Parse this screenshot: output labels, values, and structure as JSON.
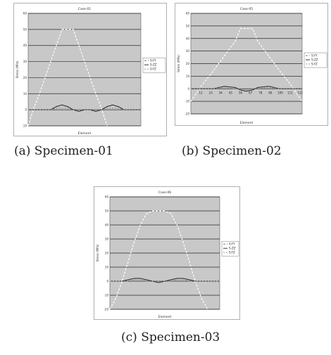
{
  "captions": {
    "a": "(a) Specimen-01",
    "b": "(b) Specimen-02",
    "c": "(c) Specimen-03"
  },
  "colors": {
    "plot_bg": "#c8c8c8",
    "grid": "#2a2a2a",
    "series_yy": "#ffffff",
    "series_zz": "#222222",
    "series_yz": "#888888"
  },
  "chart_data": [
    {
      "type": "line",
      "title": "Case-01",
      "xlabel": "Element",
      "ylabel": "Stress (MPa)",
      "ylim": [
        -10,
        60
      ],
      "yticks": [
        60,
        50,
        40,
        30,
        20,
        10,
        0,
        -10
      ],
      "grid": true,
      "legend": "right",
      "x": [
        0,
        5,
        10,
        15,
        20,
        25,
        30,
        35,
        40,
        45,
        50,
        55,
        60,
        65,
        70,
        75,
        80,
        85,
        90,
        95,
        100
      ],
      "series": [
        {
          "name": "S-YY",
          "values": [
            -10,
            1,
            10,
            20,
            30,
            40,
            50,
            50,
            50,
            40,
            30,
            20,
            10,
            1,
            -10,
            null,
            null,
            null,
            null,
            null,
            null
          ]
        },
        {
          "name": "S-ZZ",
          "values": [
            0,
            0,
            0,
            0,
            0,
            2,
            3,
            2,
            0,
            -1,
            0,
            0,
            -1,
            0,
            2,
            3,
            2,
            0,
            0,
            0,
            0
          ]
        },
        {
          "name": "S-YZ",
          "values": [
            0,
            0,
            0,
            0,
            0,
            1,
            1,
            1,
            0,
            0,
            0,
            0,
            0,
            0,
            1,
            1,
            1,
            0,
            0,
            0,
            0
          ]
        }
      ]
    },
    {
      "type": "line",
      "title": "Case-05",
      "xlabel": "Element",
      "ylabel": "Stress (MPa)",
      "ylim": [
        -20,
        60
      ],
      "yticks": [
        60,
        50,
        40,
        30,
        20,
        10,
        0,
        -10,
        -20
      ],
      "xticks": [
        "12",
        "23",
        "34",
        "45",
        "56",
        "67",
        "78",
        "89",
        "100",
        "111",
        "122"
      ],
      "grid": true,
      "legend": "right",
      "x": [
        1,
        12,
        23,
        34,
        45,
        50,
        56,
        62,
        67,
        78,
        89,
        100,
        111
      ],
      "series": [
        {
          "name": "S-YY",
          "values": [
            -10,
            3,
            14,
            26,
            38,
            48,
            48,
            48,
            38,
            26,
            14,
            3,
            -10
          ]
        },
        {
          "name": "S-ZZ",
          "values": [
            0,
            0,
            0,
            2,
            1,
            -1,
            -2,
            -1,
            1,
            2,
            0,
            0,
            0
          ]
        },
        {
          "name": "S-YZ",
          "values": [
            0,
            0,
            0,
            1,
            0,
            0,
            -1,
            0,
            0,
            1,
            0,
            0,
            0
          ]
        }
      ]
    },
    {
      "type": "line",
      "title": "Case-06",
      "xlabel": "Element",
      "ylabel": "Stress (MPa)",
      "ylim": [
        -20,
        60
      ],
      "yticks": [
        60,
        50,
        40,
        30,
        20,
        10,
        0,
        -10,
        -20
      ],
      "grid": true,
      "legend": "right",
      "x": [
        0,
        6,
        12,
        18,
        24,
        30,
        36,
        42,
        48,
        54,
        60,
        66,
        72,
        78,
        84,
        90,
        96,
        102,
        108
      ],
      "series": [
        {
          "name": "S-YY",
          "values": [
            -20,
            -12,
            0,
            14,
            28,
            40,
            48,
            50,
            50,
            50,
            48,
            40,
            28,
            14,
            0,
            -12,
            -20,
            null,
            null
          ]
        },
        {
          "name": "S-ZZ",
          "values": [
            0,
            0,
            0,
            1,
            2,
            2,
            1,
            0,
            -1,
            0,
            1,
            2,
            2,
            1,
            0,
            0,
            0,
            0,
            0
          ]
        },
        {
          "name": "S-YZ",
          "values": [
            0,
            0,
            0,
            0,
            1,
            1,
            0,
            0,
            0,
            0,
            0,
            1,
            1,
            0,
            0,
            0,
            0,
            0,
            0
          ]
        }
      ]
    }
  ]
}
